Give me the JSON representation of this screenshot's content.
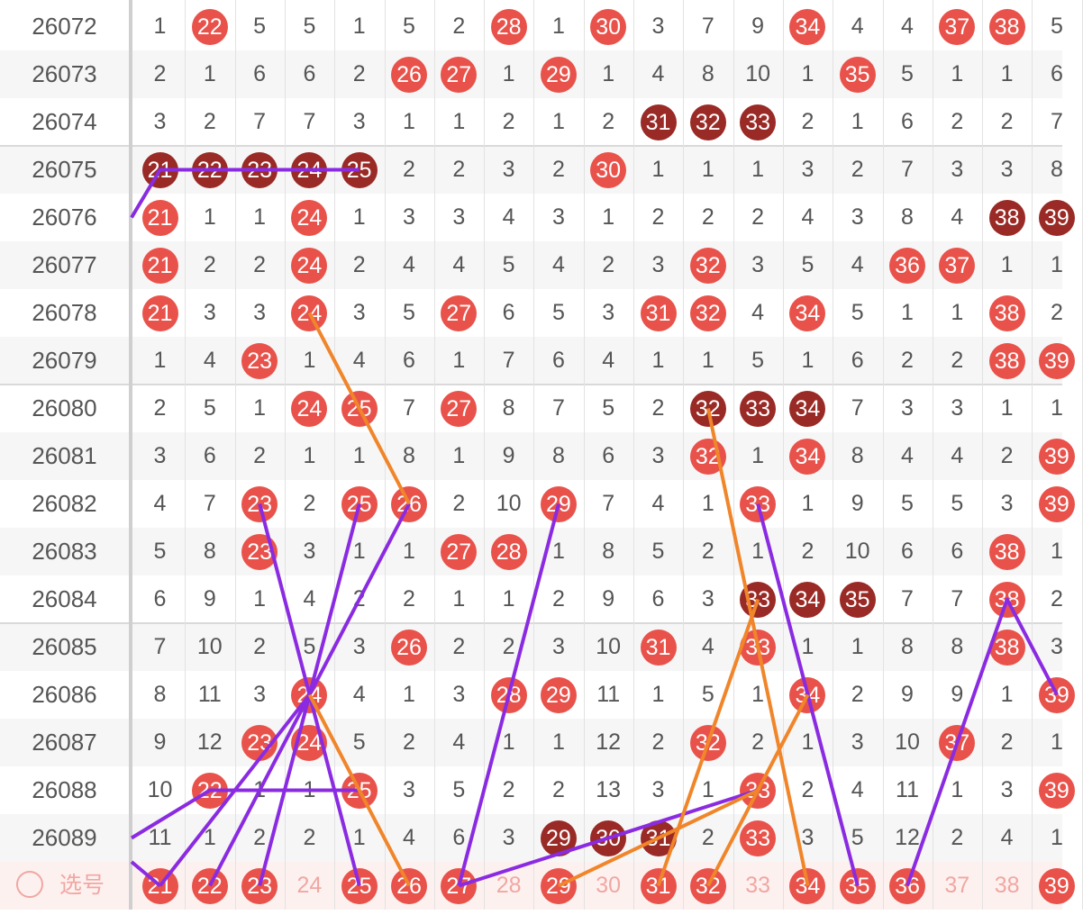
{
  "columns": [
    "21",
    "22",
    "23",
    "24",
    "25",
    "26",
    "27",
    "28",
    "29",
    "30",
    "31",
    "32",
    "33",
    "34",
    "35",
    "36",
    "37",
    "38",
    "39"
  ],
  "rows": [
    {
      "issue": "26072",
      "cells": [
        "1",
        {
          "v": "22",
          "s": "hot"
        },
        "5",
        "5",
        "1",
        "5",
        "2",
        {
          "v": "28",
          "s": "hot"
        },
        "1",
        {
          "v": "30",
          "s": "hot"
        },
        "3",
        "7",
        "9",
        {
          "v": "34",
          "s": "hot"
        },
        "4",
        "4",
        {
          "v": "37",
          "s": "hot"
        },
        {
          "v": "38",
          "s": "hot"
        },
        "5"
      ]
    },
    {
      "issue": "26073",
      "cells": [
        "2",
        "1",
        "6",
        "6",
        "2",
        {
          "v": "26",
          "s": "hot"
        },
        {
          "v": "27",
          "s": "hot"
        },
        "1",
        {
          "v": "29",
          "s": "hot"
        },
        "1",
        "4",
        "8",
        "10",
        "1",
        {
          "v": "35",
          "s": "hot"
        },
        "5",
        "1",
        "1",
        "6"
      ]
    },
    {
      "issue": "26074",
      "cells": [
        "3",
        "2",
        "7",
        "7",
        "3",
        "1",
        "1",
        "2",
        "1",
        "2",
        {
          "v": "31",
          "s": "dark"
        },
        {
          "v": "32",
          "s": "dark"
        },
        {
          "v": "33",
          "s": "dark"
        },
        "2",
        "1",
        "6",
        "2",
        "2",
        "7"
      ]
    },
    {
      "issue": "26075",
      "cells": [
        {
          "v": "21",
          "s": "dark"
        },
        {
          "v": "22",
          "s": "dark"
        },
        {
          "v": "23",
          "s": "dark"
        },
        {
          "v": "24",
          "s": "dark"
        },
        {
          "v": "25",
          "s": "dark"
        },
        "2",
        "2",
        "3",
        "2",
        {
          "v": "30",
          "s": "hot"
        },
        "1",
        "1",
        "1",
        "3",
        "2",
        "7",
        "3",
        "3",
        "8"
      ]
    },
    {
      "issue": "26076",
      "cells": [
        {
          "v": "21",
          "s": "hot"
        },
        "1",
        "1",
        {
          "v": "24",
          "s": "hot"
        },
        "1",
        "3",
        "3",
        "4",
        "3",
        "1",
        "2",
        "2",
        "2",
        "4",
        "3",
        "8",
        "4",
        {
          "v": "38",
          "s": "dark"
        },
        {
          "v": "39",
          "s": "dark"
        }
      ]
    },
    {
      "issue": "26077",
      "cells": [
        {
          "v": "21",
          "s": "hot"
        },
        "2",
        "2",
        {
          "v": "24",
          "s": "hot"
        },
        "2",
        "4",
        "4",
        "5",
        "4",
        "2",
        "3",
        {
          "v": "32",
          "s": "hot"
        },
        "3",
        "5",
        "4",
        {
          "v": "36",
          "s": "hot"
        },
        {
          "v": "37",
          "s": "hot"
        },
        "1",
        "1"
      ]
    },
    {
      "issue": "26078",
      "cells": [
        {
          "v": "21",
          "s": "hot"
        },
        "3",
        "3",
        {
          "v": "24",
          "s": "hot"
        },
        "3",
        "5",
        {
          "v": "27",
          "s": "hot"
        },
        "6",
        "5",
        "3",
        {
          "v": "31",
          "s": "hot"
        },
        {
          "v": "32",
          "s": "hot"
        },
        "4",
        {
          "v": "34",
          "s": "hot"
        },
        "5",
        "1",
        "1",
        {
          "v": "38",
          "s": "hot"
        },
        "2"
      ]
    },
    {
      "issue": "26079",
      "cells": [
        "1",
        "4",
        {
          "v": "23",
          "s": "hot"
        },
        "1",
        "4",
        "6",
        "1",
        "7",
        "6",
        "4",
        "1",
        "1",
        "5",
        "1",
        "6",
        "2",
        "2",
        {
          "v": "38",
          "s": "hot"
        },
        {
          "v": "39",
          "s": "hot"
        }
      ]
    },
    {
      "issue": "26080",
      "cells": [
        "2",
        "5",
        "1",
        {
          "v": "24",
          "s": "hot"
        },
        {
          "v": "25",
          "s": "hot"
        },
        "7",
        {
          "v": "27",
          "s": "hot"
        },
        "8",
        "7",
        "5",
        "2",
        {
          "v": "32",
          "s": "dark"
        },
        {
          "v": "33",
          "s": "dark"
        },
        {
          "v": "34",
          "s": "dark"
        },
        "7",
        "3",
        "3",
        "1",
        "1"
      ]
    },
    {
      "issue": "26081",
      "cells": [
        "3",
        "6",
        "2",
        "1",
        "1",
        "8",
        "1",
        "9",
        "8",
        "6",
        "3",
        {
          "v": "32",
          "s": "hot"
        },
        "1",
        {
          "v": "34",
          "s": "hot"
        },
        "8",
        "4",
        "4",
        "2",
        {
          "v": "39",
          "s": "hot"
        }
      ]
    },
    {
      "issue": "26082",
      "cells": [
        "4",
        "7",
        {
          "v": "23",
          "s": "hot"
        },
        "2",
        {
          "v": "25",
          "s": "hot"
        },
        {
          "v": "26",
          "s": "hot"
        },
        "2",
        "10",
        {
          "v": "29",
          "s": "hot"
        },
        "7",
        "4",
        "1",
        {
          "v": "33",
          "s": "hot"
        },
        "1",
        "9",
        "5",
        "5",
        "3",
        {
          "v": "39",
          "s": "hot"
        }
      ]
    },
    {
      "issue": "26083",
      "cells": [
        "5",
        "8",
        {
          "v": "23",
          "s": "hot"
        },
        "3",
        "1",
        "1",
        {
          "v": "27",
          "s": "hot"
        },
        {
          "v": "28",
          "s": "hot"
        },
        "1",
        "8",
        "5",
        "2",
        "1",
        "2",
        "10",
        "6",
        "6",
        {
          "v": "38",
          "s": "hot"
        },
        "1"
      ]
    },
    {
      "issue": "26084",
      "cells": [
        "6",
        "9",
        "1",
        "4",
        "2",
        "2",
        "1",
        "1",
        "2",
        "9",
        "6",
        "3",
        {
          "v": "33",
          "s": "dark"
        },
        {
          "v": "34",
          "s": "dark"
        },
        {
          "v": "35",
          "s": "dark"
        },
        "7",
        "7",
        {
          "v": "38",
          "s": "hot"
        },
        "2"
      ]
    },
    {
      "issue": "26085",
      "cells": [
        "7",
        "10",
        "2",
        "5",
        "3",
        {
          "v": "26",
          "s": "hot"
        },
        "2",
        "2",
        "3",
        "10",
        {
          "v": "31",
          "s": "hot"
        },
        "4",
        {
          "v": "33",
          "s": "hot"
        },
        "1",
        "1",
        "8",
        "8",
        {
          "v": "38",
          "s": "hot"
        },
        "3"
      ]
    },
    {
      "issue": "26086",
      "cells": [
        "8",
        "11",
        "3",
        {
          "v": "24",
          "s": "hot"
        },
        "4",
        "1",
        "3",
        {
          "v": "28",
          "s": "hot"
        },
        {
          "v": "29",
          "s": "hot"
        },
        "11",
        "1",
        "5",
        "1",
        {
          "v": "34",
          "s": "hot"
        },
        "2",
        "9",
        "9",
        "1",
        {
          "v": "39",
          "s": "hot"
        }
      ]
    },
    {
      "issue": "26087",
      "cells": [
        "9",
        "12",
        {
          "v": "23",
          "s": "hot"
        },
        {
          "v": "24",
          "s": "hot"
        },
        "5",
        "2",
        "4",
        "1",
        "1",
        "12",
        "2",
        {
          "v": "32",
          "s": "hot"
        },
        "2",
        "1",
        "3",
        "10",
        {
          "v": "37",
          "s": "hot"
        },
        "2",
        "1"
      ]
    },
    {
      "issue": "26088",
      "cells": [
        "10",
        {
          "v": "22",
          "s": "hot"
        },
        "1",
        "1",
        {
          "v": "25",
          "s": "hot"
        },
        "3",
        "5",
        "2",
        "2",
        "13",
        "3",
        "1",
        {
          "v": "33",
          "s": "hot"
        },
        "2",
        "4",
        "11",
        "1",
        "3",
        {
          "v": "39",
          "s": "hot"
        }
      ]
    },
    {
      "issue": "26089",
      "cells": [
        "11",
        "1",
        "2",
        "2",
        "1",
        "4",
        "6",
        "3",
        {
          "v": "29",
          "s": "dark"
        },
        {
          "v": "30",
          "s": "dark"
        },
        {
          "v": "31",
          "s": "dark"
        },
        "2",
        {
          "v": "33",
          "s": "hot"
        },
        "3",
        "5",
        "12",
        "2",
        "4",
        "1"
      ]
    }
  ],
  "select_row": {
    "label": "选号",
    "cells": [
      {
        "v": "21",
        "s": "hot"
      },
      {
        "v": "22",
        "s": "hot"
      },
      {
        "v": "23",
        "s": "hot"
      },
      {
        "v": "24",
        "s": "faint"
      },
      {
        "v": "25",
        "s": "hot"
      },
      {
        "v": "26",
        "s": "hot"
      },
      {
        "v": "27",
        "s": "hot"
      },
      {
        "v": "28",
        "s": "faint"
      },
      {
        "v": "29",
        "s": "hot"
      },
      {
        "v": "30",
        "s": "faint"
      },
      {
        "v": "31",
        "s": "hot"
      },
      {
        "v": "32",
        "s": "hot"
      },
      {
        "v": "33",
        "s": "faint"
      },
      {
        "v": "34",
        "s": "hot"
      },
      {
        "v": "35",
        "s": "hot"
      },
      {
        "v": "36",
        "s": "hot"
      },
      {
        "v": "37",
        "s": "faint"
      },
      {
        "v": "38",
        "s": "faint"
      },
      {
        "v": "39",
        "s": "hot"
      }
    ]
  },
  "colors": {
    "hot_ball": "#e8524a",
    "dark_ball": "#992a26",
    "faint_text": "#f0a7a2",
    "purple_line": "#8a2be2",
    "orange_line": "#f0852a"
  },
  "trend_lines": {
    "purple": [
      [
        [
          "-1",
          4
        ],
        [
          "21",
          3
        ],
        [
          "25",
          3
        ]
      ],
      [
        [
          "23",
          10
        ],
        [
          "25",
          18
        ]
      ],
      [
        [
          "25",
          10
        ],
        [
          "24",
          14
        ],
        [
          "21",
          18
        ]
      ],
      [
        [
          "26",
          10
        ],
        [
          "24",
          14
        ],
        [
          "22",
          18
        ]
      ],
      [
        [
          "-1",
          17
        ],
        [
          "22",
          16
        ],
        [
          "25",
          16
        ]
      ],
      [
        [
          "23",
          18
        ],
        [
          "24",
          14
        ]
      ],
      [
        [
          "-1",
          17.5
        ],
        [
          "21",
          18
        ]
      ],
      [
        [
          "27",
          18
        ],
        [
          "29",
          10
        ]
      ],
      [
        [
          "27",
          18
        ],
        [
          "33",
          16
        ]
      ],
      [
        [
          "33",
          10
        ],
        [
          "35",
          18
        ]
      ],
      [
        [
          "36",
          18
        ],
        [
          "38",
          12
        ],
        [
          "39",
          14
        ]
      ]
    ],
    "orange": [
      [
        [
          "24",
          6
        ],
        [
          "26",
          10
        ]
      ],
      [
        [
          "24",
          14
        ],
        [
          "26",
          18
        ]
      ],
      [
        [
          "29",
          18
        ],
        [
          "33",
          16
        ]
      ],
      [
        [
          "32",
          8
        ],
        [
          "34",
          18
        ]
      ],
      [
        [
          "31",
          18
        ],
        [
          "33",
          12
        ]
      ],
      [
        [
          "32",
          18
        ],
        [
          "34",
          14
        ]
      ]
    ]
  }
}
